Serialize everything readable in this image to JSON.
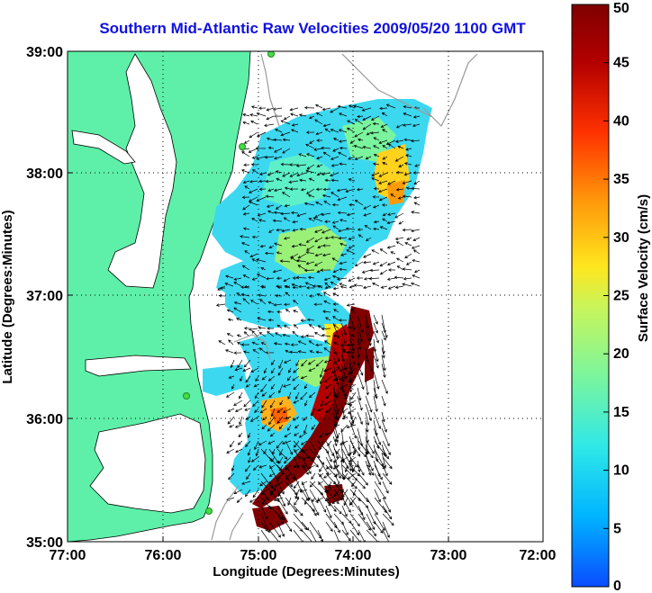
{
  "title": "Southern Mid-Atlantic Raw Velocities 2009/05/20 1100 GMT",
  "x_axis": {
    "label": "Longitude (Degrees:Minutes)",
    "ticks": [
      "77:00",
      "76:00",
      "75:00",
      "74:00",
      "73:00",
      "72:00"
    ]
  },
  "y_axis": {
    "label": "Latitude (Degrees:Minutes)",
    "ticks": [
      "39:00",
      "38:00",
      "37:00",
      "36:00",
      "35:00"
    ]
  },
  "colorbar": {
    "label": "Surface Velocity (cm/s)",
    "ticks": [
      "50",
      "45",
      "40",
      "35",
      "30",
      "25",
      "20",
      "15",
      "10",
      "5",
      "0"
    ],
    "min": 0,
    "max": 50
  },
  "colors": {
    "title": "#1010e0",
    "land": "#5ef0a8",
    "station": "#44dd44",
    "colormap": [
      "#0a4cff",
      "#00b4ff",
      "#2ee8e8",
      "#7af59e",
      "#c8f55a",
      "#ffe61e",
      "#ff9a0a",
      "#ff3200",
      "#b40000",
      "#800000"
    ]
  },
  "chart_data": {
    "type": "heatmap",
    "description_fields": "surface current velocity field with arrows",
    "xlim": [
      -77,
      -72
    ],
    "ylim": [
      35,
      39
    ],
    "velocity_range_cm_s": [
      0,
      50
    ],
    "grid": true
  }
}
